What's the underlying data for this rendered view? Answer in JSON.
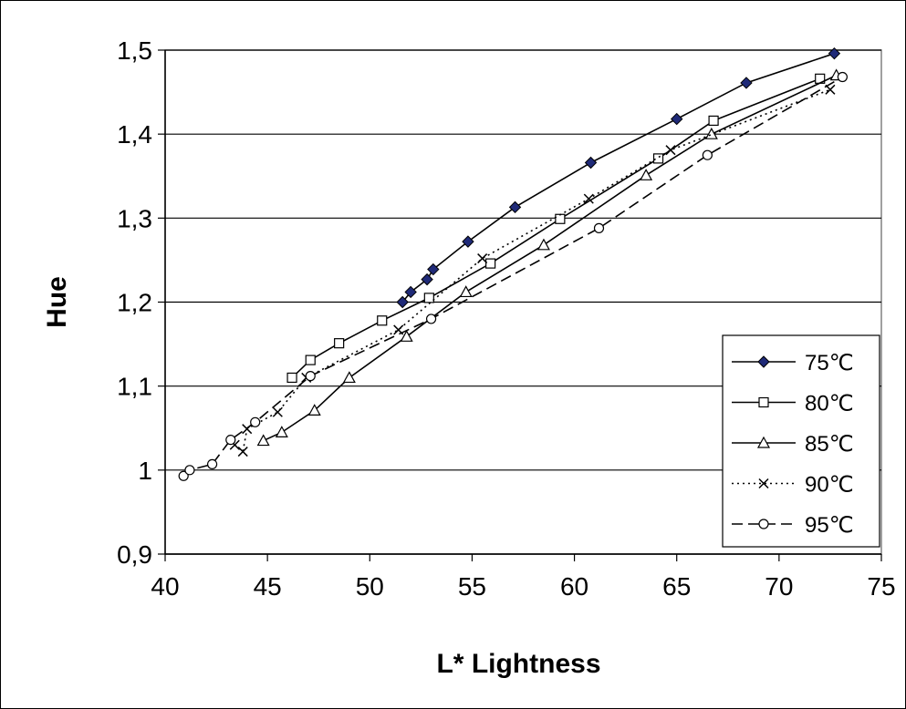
{
  "chart_data": {
    "type": "line",
    "xlabel": "L* Lightness",
    "ylabel": "Hue",
    "xlim": [
      40,
      75
    ],
    "ylim": [
      0.9,
      1.5
    ],
    "x_ticks": [
      40,
      45,
      50,
      55,
      60,
      65,
      70,
      75
    ],
    "y_ticks": [
      0.9,
      1.0,
      1.1,
      1.2,
      1.3,
      1.4,
      1.5
    ],
    "x_tick_labels": [
      "40",
      "45",
      "50",
      "55",
      "60",
      "65",
      "70",
      "75"
    ],
    "y_tick_labels": [
      "0,9",
      "1",
      "1,1",
      "1,2",
      "1,3",
      "1,4",
      "1,5"
    ],
    "grid": "horizontal major gridlines",
    "legend_position": "right",
    "series": [
      {
        "name": "75℃",
        "marker": "filled-diamond",
        "line_style": "solid",
        "color": "#000000",
        "marker_fill": "#1f2a78",
        "points": [
          [
            51.6,
            1.2
          ],
          [
            52.0,
            1.212
          ],
          [
            52.8,
            1.227
          ],
          [
            53.1,
            1.239
          ],
          [
            54.8,
            1.272
          ],
          [
            57.1,
            1.313
          ],
          [
            60.8,
            1.366
          ],
          [
            65.0,
            1.418
          ],
          [
            68.4,
            1.461
          ],
          [
            72.7,
            1.496
          ]
        ]
      },
      {
        "name": "80℃",
        "marker": "open-square",
        "line_style": "solid",
        "color": "#000000",
        "points": [
          [
            46.2,
            1.11
          ],
          [
            47.1,
            1.131
          ],
          [
            48.5,
            1.151
          ],
          [
            50.6,
            1.178
          ],
          [
            52.9,
            1.205
          ],
          [
            55.9,
            1.246
          ],
          [
            59.3,
            1.299
          ],
          [
            64.1,
            1.371
          ],
          [
            66.8,
            1.416
          ],
          [
            72.0,
            1.466
          ]
        ]
      },
      {
        "name": "85℃",
        "marker": "open-triangle",
        "line_style": "solid",
        "color": "#000000",
        "points": [
          [
            44.8,
            1.035
          ],
          [
            45.7,
            1.045
          ],
          [
            47.3,
            1.071
          ],
          [
            49.0,
            1.11
          ],
          [
            51.8,
            1.159
          ],
          [
            54.7,
            1.212
          ],
          [
            58.5,
            1.268
          ],
          [
            63.5,
            1.351
          ],
          [
            66.7,
            1.4
          ],
          [
            72.8,
            1.47
          ]
        ]
      },
      {
        "name": "90℃",
        "marker": "x",
        "line_style": "dotted",
        "color": "#000000",
        "points": [
          [
            43.4,
            1.03
          ],
          [
            43.8,
            1.022
          ],
          [
            44.0,
            1.049
          ],
          [
            45.5,
            1.069
          ],
          [
            46.9,
            1.11
          ],
          [
            51.4,
            1.167
          ],
          [
            55.5,
            1.252
          ],
          [
            60.7,
            1.323
          ],
          [
            64.7,
            1.381
          ],
          [
            72.5,
            1.453
          ]
        ]
      },
      {
        "name": "95℃",
        "marker": "open-circle",
        "line_style": "dashed",
        "color": "#000000",
        "points": [
          [
            40.9,
            0.993
          ],
          [
            41.2,
            1.0
          ],
          [
            42.3,
            1.007
          ],
          [
            43.2,
            1.036
          ],
          [
            44.4,
            1.057
          ],
          [
            47.1,
            1.112
          ],
          [
            53.0,
            1.18
          ],
          [
            61.2,
            1.288
          ],
          [
            66.5,
            1.375
          ],
          [
            73.1,
            1.468
          ]
        ]
      }
    ]
  }
}
